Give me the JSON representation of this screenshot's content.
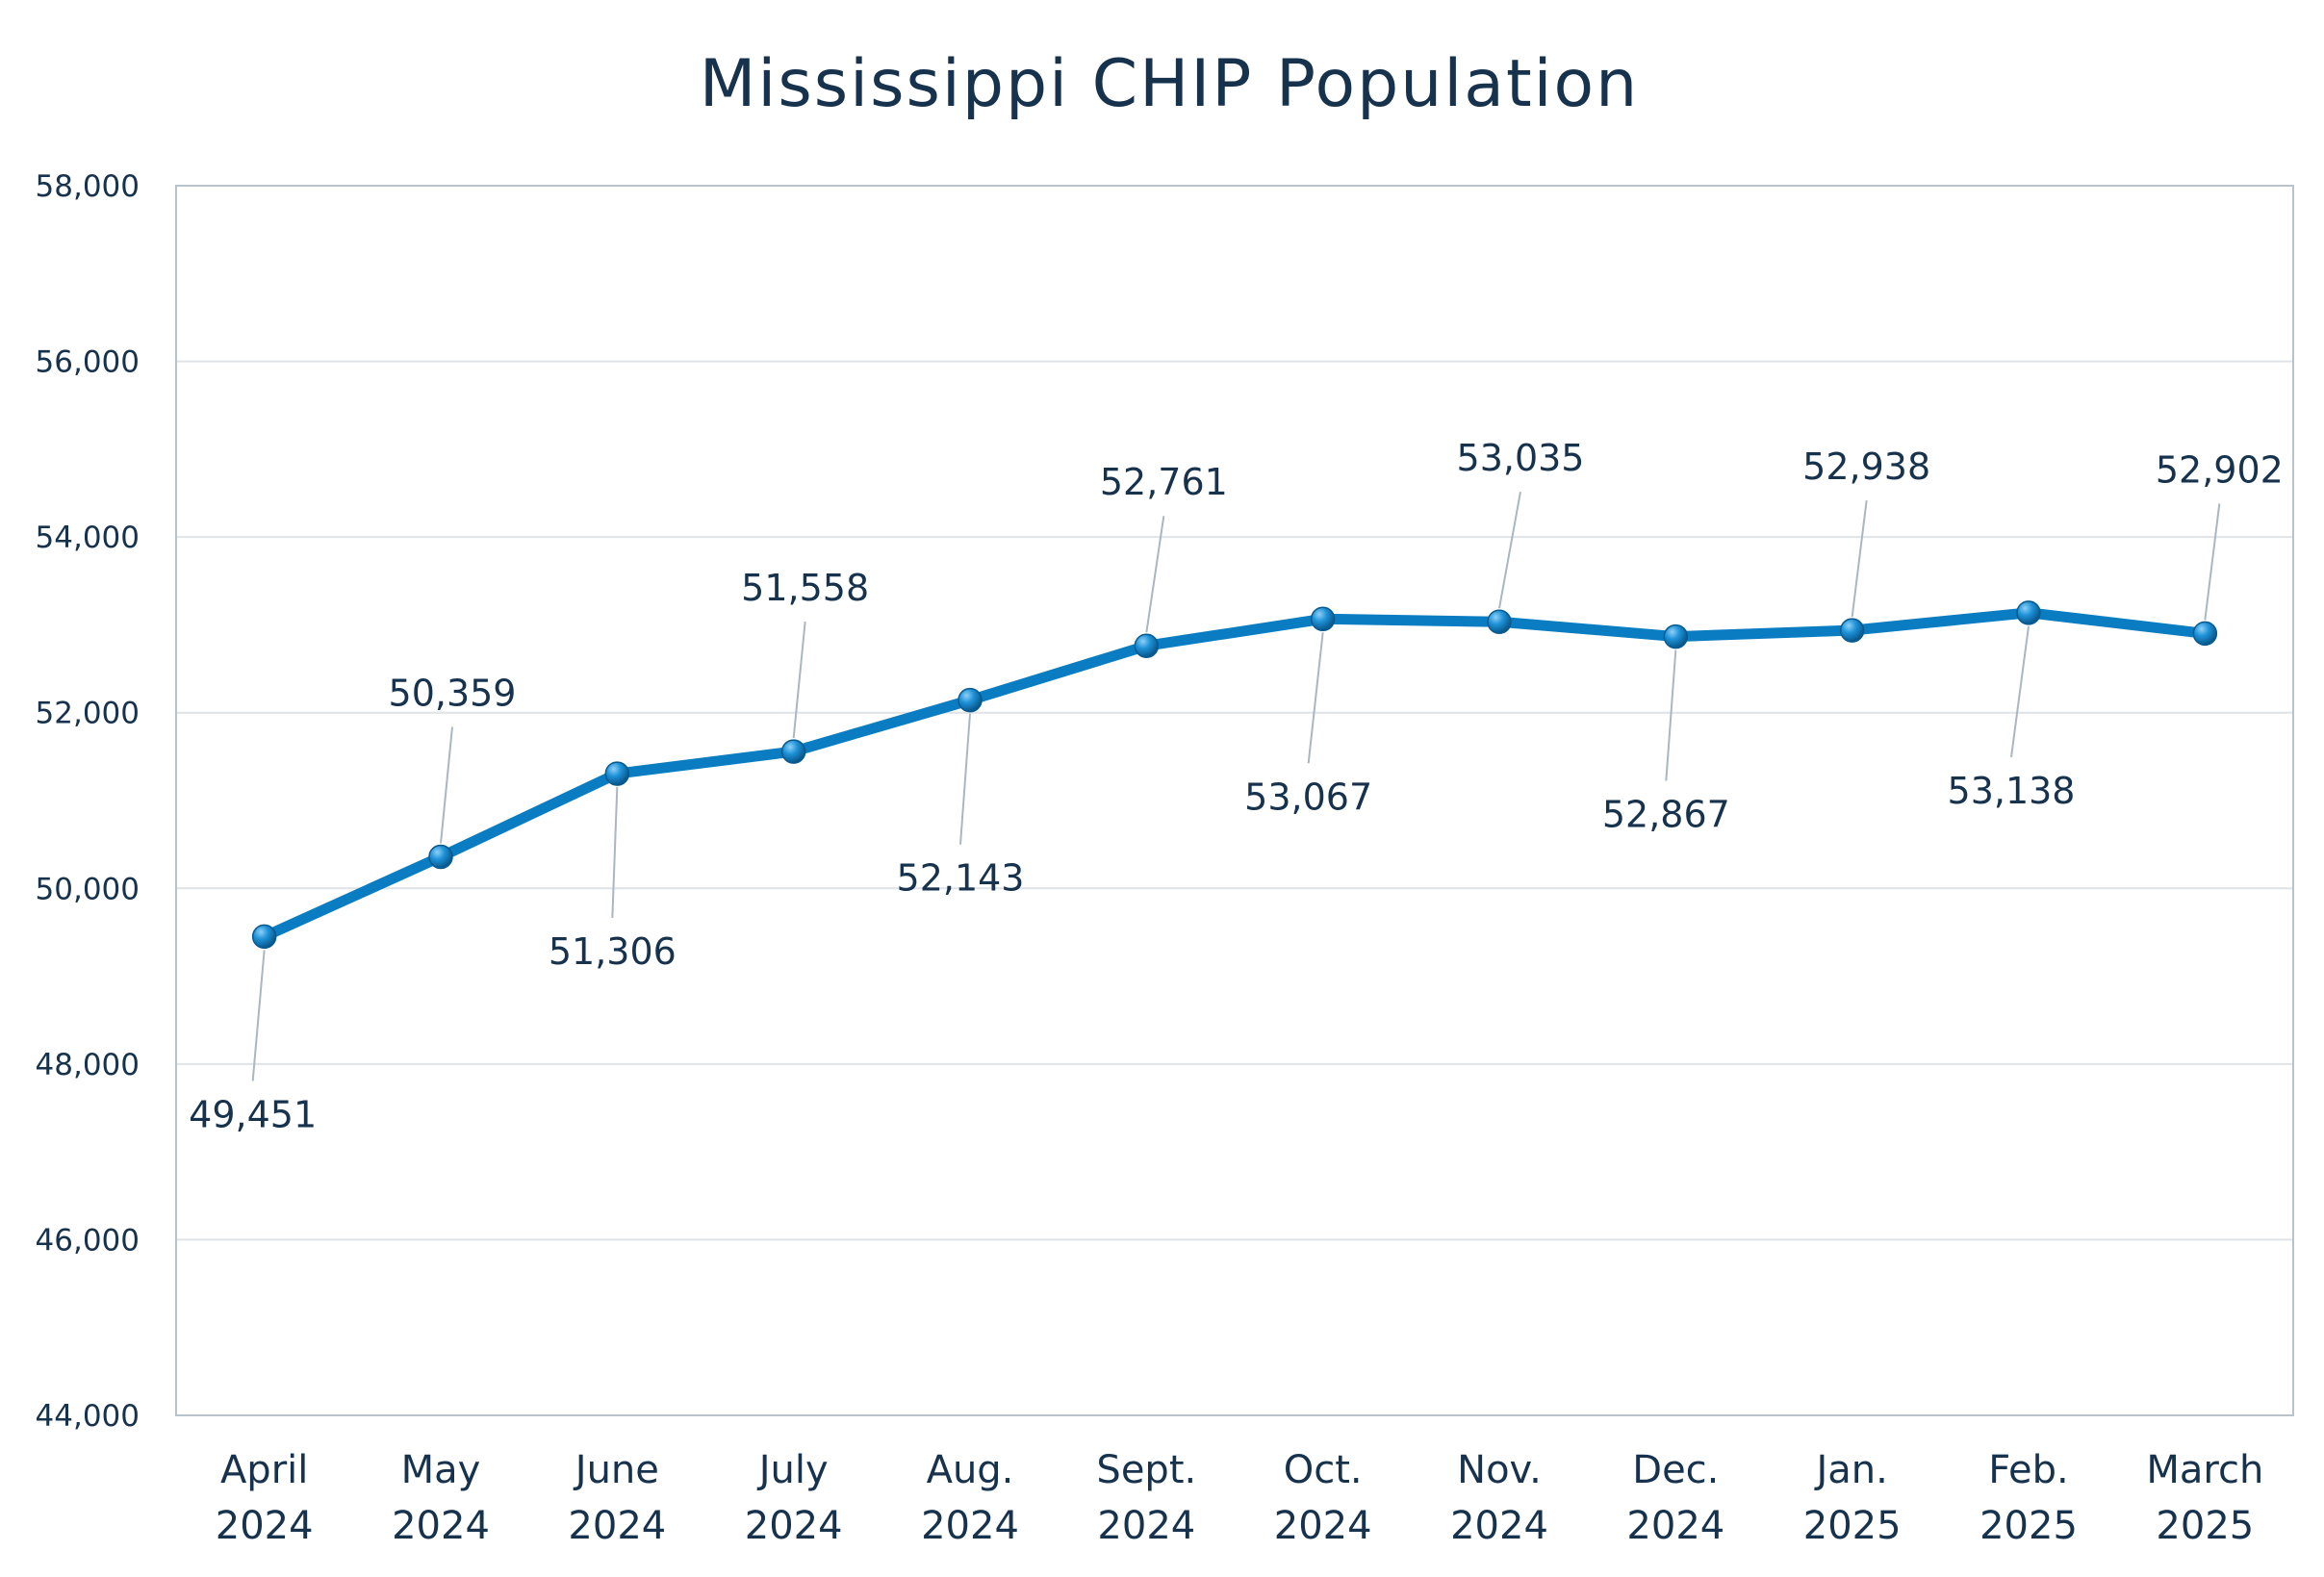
{
  "chart_data": {
    "type": "line",
    "title": "Mississippi CHIP Population",
    "xlabel": "",
    "ylabel": "",
    "categories": [
      [
        "April",
        "2024"
      ],
      [
        "May",
        "2024"
      ],
      [
        "June",
        "2024"
      ],
      [
        "July",
        "2024"
      ],
      [
        "Aug.",
        "2024"
      ],
      [
        "Sept.",
        "2024"
      ],
      [
        "Oct.",
        "2024"
      ],
      [
        "Nov.",
        "2024"
      ],
      [
        "Dec.",
        "2024"
      ],
      [
        "Jan.",
        "2025"
      ],
      [
        "Feb.",
        "2025"
      ],
      [
        "March",
        "2025"
      ]
    ],
    "series": [
      {
        "values": [
          49451,
          50359,
          51306,
          51558,
          52143,
          52761,
          53067,
          53035,
          52867,
          52938,
          53138,
          52902
        ]
      }
    ],
    "data_labels": [
      "49,451",
      "50,359",
      "51,306",
      "51,558",
      "52,143",
      "52,761",
      "53,067",
      "53,035",
      "52,867",
      "52,938",
      "53,138",
      "52,902"
    ],
    "label_positions": [
      "below",
      "above",
      "below",
      "above",
      "below",
      "above",
      "below",
      "above",
      "below",
      "above",
      "below",
      "above"
    ],
    "ylim": [
      44000,
      58000
    ],
    "yticks": [
      44000,
      46000,
      48000,
      50000,
      52000,
      54000,
      56000,
      58000
    ],
    "ytick_labels": [
      "44,000",
      "46,000",
      "48,000",
      "50,000",
      "52,000",
      "54,000",
      "56,000",
      "58,000"
    ],
    "grid": true,
    "legend": "none",
    "colors": {
      "line": "#0a7dc2",
      "marker": "#1a8fd6",
      "text": "#17324d",
      "grid": "#dfe3e7",
      "frame": "#b9c3cc"
    }
  }
}
